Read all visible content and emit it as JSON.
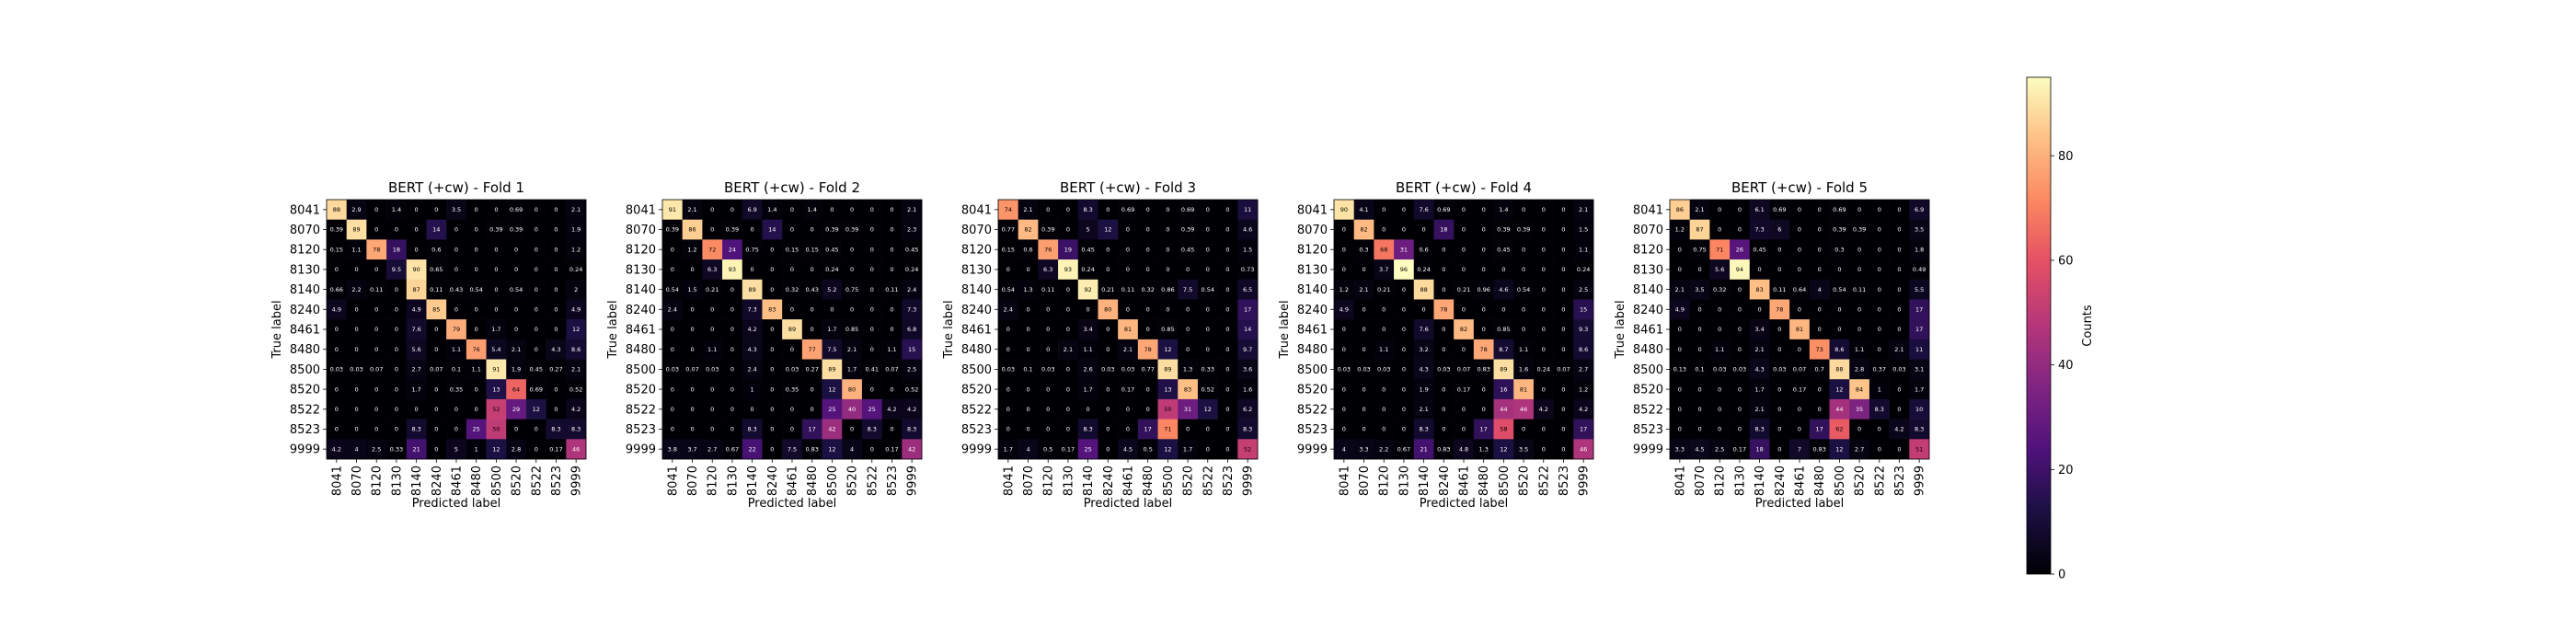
{
  "chart_data": {
    "type": "heatmap",
    "labels": [
      "8041",
      "8070",
      "8120",
      "8130",
      "8140",
      "8240",
      "8461",
      "8480",
      "8500",
      "8520",
      "8522",
      "8523",
      "9999"
    ],
    "xlabel": "Predicted label",
    "ylabel": "True label",
    "colorbar": {
      "label": "Counts",
      "range": [
        0,
        95
      ],
      "ticks": [
        0,
        20,
        40,
        60,
        80
      ],
      "colormap": "magma"
    },
    "panels": [
      {
        "title": "BERT (+cw) - Fold 1",
        "matrix": [
          [
            88,
            2.9,
            0,
            1.4,
            0,
            0,
            3.5,
            0,
            0,
            0.69,
            0,
            0,
            2.1
          ],
          [
            0.39,
            89,
            0,
            0,
            0,
            14,
            0,
            0,
            0.39,
            0.39,
            0,
            0,
            1.9
          ],
          [
            0.15,
            1.1,
            78,
            18,
            0,
            0.6,
            0,
            0,
            0,
            0,
            0,
            0,
            1.2
          ],
          [
            0,
            0,
            0,
            9.5,
            90,
            0.65,
            0,
            0,
            0,
            0,
            0,
            0,
            0.24
          ],
          [
            0.66,
            2.2,
            0.11,
            0,
            87,
            0.11,
            0.43,
            0.54,
            0,
            0.54,
            0,
            0,
            2
          ],
          [
            4.9,
            0,
            0,
            0,
            4.9,
            85,
            0,
            0,
            0,
            0,
            0,
            0,
            4.9
          ],
          [
            0,
            0,
            0,
            0,
            7.6,
            0,
            79,
            0,
            1.7,
            0,
            0,
            0,
            12
          ],
          [
            0,
            0,
            0,
            0,
            5.6,
            0,
            1.1,
            76,
            5.4,
            2.1,
            0,
            4.3,
            8.6
          ],
          [
            0.03,
            0.03,
            0.07,
            0,
            2.7,
            0.07,
            0.1,
            1.1,
            91,
            1.9,
            0.45,
            0.27,
            2.1
          ],
          [
            0,
            0,
            0,
            0,
            1.7,
            0,
            0.35,
            0,
            13,
            64,
            0.69,
            0,
            0.52
          ],
          [
            0,
            0,
            0,
            0,
            0,
            0,
            0,
            0,
            52,
            29,
            12,
            0,
            4.2
          ],
          [
            0,
            0,
            0,
            0,
            8.3,
            0,
            0,
            25,
            50,
            0,
            0,
            8.3,
            8.3
          ],
          [
            4.2,
            4,
            2.5,
            0.33,
            21,
            0,
            5,
            1,
            12,
            2.8,
            0,
            0.17,
            46
          ]
        ]
      },
      {
        "title": "BERT (+cw) - Fold 2",
        "matrix": [
          [
            91,
            2.1,
            0,
            0,
            6.9,
            1.4,
            0,
            1.4,
            0,
            0,
            0,
            0,
            2.1
          ],
          [
            0.39,
            86,
            0,
            0.39,
            0,
            14,
            0,
            0,
            0.39,
            0.39,
            0,
            0,
            2.3
          ],
          [
            0,
            1.2,
            72,
            24,
            0.75,
            0,
            0.15,
            0.15,
            0.45,
            0,
            0,
            0,
            0.45
          ],
          [
            0,
            0,
            6.3,
            93,
            0,
            0,
            0,
            0,
            0.24,
            0,
            0,
            0,
            0.24
          ],
          [
            0.54,
            1.5,
            0.21,
            0,
            89,
            0,
            0.32,
            0.43,
            5.2,
            0.75,
            0,
            0.11,
            2.4
          ],
          [
            2.4,
            0,
            0,
            0,
            7.3,
            83,
            0,
            0,
            0,
            0,
            0,
            0,
            7.3
          ],
          [
            0,
            0,
            0,
            0,
            4.2,
            0,
            89,
            0,
            1.7,
            0.85,
            0,
            0,
            6.8
          ],
          [
            0,
            0,
            1.1,
            0,
            4.3,
            0,
            0,
            77,
            7.5,
            2.1,
            0,
            1.1,
            15
          ],
          [
            0.03,
            0.07,
            0.03,
            0,
            2.4,
            0,
            0.03,
            0.27,
            89,
            1.7,
            0.41,
            0.07,
            2.5
          ],
          [
            0,
            0,
            0,
            0,
            1,
            0,
            0.35,
            0,
            12,
            80,
            0,
            0,
            0.52
          ],
          [
            0,
            0,
            0,
            0,
            0,
            0,
            0,
            0,
            25,
            40,
            25,
            4.2,
            4.2
          ],
          [
            0,
            0,
            0,
            0,
            8.3,
            0,
            0,
            17,
            42,
            0,
            8.3,
            0,
            8.3
          ],
          [
            3.8,
            3.7,
            2.7,
            0.67,
            22,
            0,
            7.5,
            0.83,
            12,
            4,
            0,
            0.17,
            42
          ]
        ]
      },
      {
        "title": "BERT (+cw) - Fold 3",
        "matrix": [
          [
            74,
            2.1,
            0,
            0,
            8.3,
            0,
            0.69,
            0,
            0,
            0.69,
            0,
            0,
            11
          ],
          [
            0.77,
            82,
            0.39,
            0,
            5,
            12,
            0,
            0,
            0,
            0.39,
            0,
            0,
            4.6
          ],
          [
            0.15,
            0.6,
            76,
            19,
            0.45,
            0,
            0,
            0,
            0,
            0.45,
            0,
            0,
            1.5
          ],
          [
            0,
            0,
            6.3,
            93,
            0.24,
            0,
            0,
            0,
            0,
            0,
            0,
            0,
            0.73
          ],
          [
            0.54,
            1.3,
            0.11,
            0,
            92,
            0.21,
            0.11,
            0.32,
            0.86,
            7.5,
            0.54,
            0,
            6.5
          ],
          [
            2.4,
            0,
            0,
            0,
            0,
            80,
            0,
            0,
            0,
            0,
            0,
            0,
            17
          ],
          [
            0,
            0,
            0,
            0,
            3.4,
            0,
            81,
            0,
            0.85,
            0,
            0,
            0,
            14
          ],
          [
            0,
            0,
            0,
            2.1,
            1.1,
            0,
            2.1,
            78,
            12,
            0,
            0,
            0,
            9.7
          ],
          [
            0.03,
            0.1,
            0.03,
            0,
            2.6,
            0.03,
            0.03,
            0.77,
            89,
            1.3,
            0.33,
            0,
            3.6
          ],
          [
            0,
            0,
            0,
            0,
            1.7,
            0,
            0.17,
            0,
            13,
            83,
            0.52,
            0,
            1.6
          ],
          [
            0,
            0,
            0,
            0,
            0,
            0,
            0,
            0,
            50,
            31,
            12,
            0,
            6.2
          ],
          [
            0,
            0,
            0,
            0,
            8.3,
            0,
            0,
            17,
            71,
            0,
            0,
            0,
            8.3
          ],
          [
            1.7,
            4,
            0.5,
            0.17,
            25,
            0,
            4.5,
            0.5,
            12,
            1.7,
            0,
            0,
            52
          ]
        ]
      },
      {
        "title": "BERT (+cw) - Fold 4",
        "matrix": [
          [
            90,
            4.1,
            0,
            0,
            7.6,
            0.69,
            0,
            0,
            1.4,
            0,
            0,
            0,
            2.1
          ],
          [
            0,
            82,
            0,
            0,
            0,
            18,
            0,
            0,
            0.39,
            0.39,
            0,
            0,
            1.5
          ],
          [
            0,
            0.3,
            68,
            31,
            0.6,
            0,
            0,
            0,
            0.45,
            0,
            0,
            0,
            1.1
          ],
          [
            0,
            0,
            3.7,
            96,
            0.24,
            0,
            0,
            0,
            0,
            0,
            0,
            0,
            0.24
          ],
          [
            1.2,
            2.1,
            0.21,
            0,
            88,
            0,
            0.21,
            0.96,
            4.6,
            0.54,
            0,
            0,
            2.5
          ],
          [
            4.9,
            0,
            0,
            0,
            0,
            78,
            0,
            0,
            0,
            0,
            0,
            0,
            15
          ],
          [
            0,
            0,
            0,
            0,
            7.6,
            0,
            82,
            0,
            0.85,
            0,
            0,
            0,
            9.3
          ],
          [
            0,
            0,
            1.1,
            0,
            3.2,
            0,
            0,
            78,
            8.7,
            1.1,
            0,
            0,
            8.6
          ],
          [
            0.03,
            0.03,
            0.03,
            0,
            4.3,
            0.03,
            0.07,
            0.83,
            89,
            1.6,
            0.24,
            0.07,
            2.7
          ],
          [
            0,
            0,
            0,
            0,
            1.9,
            0,
            0.17,
            0,
            16,
            81,
            0,
            0,
            1.2
          ],
          [
            0,
            0,
            0,
            0,
            2.1,
            0,
            0,
            0,
            44,
            46,
            4.2,
            0,
            4.2
          ],
          [
            0,
            0,
            0,
            0,
            8.3,
            0,
            0,
            17,
            58,
            0,
            0,
            0,
            17
          ],
          [
            4,
            3.3,
            2.2,
            0.67,
            21,
            0.83,
            4.8,
            1.3,
            12,
            3.5,
            0,
            0,
            46
          ]
        ]
      },
      {
        "title": "BERT (+cw) - Fold 5",
        "matrix": [
          [
            86,
            2.1,
            0,
            0,
            6.1,
            0.69,
            0,
            0,
            0.69,
            0,
            0,
            0,
            6.9
          ],
          [
            1.2,
            87,
            0,
            0,
            7.3,
            6,
            0,
            0,
            0.39,
            0.39,
            0,
            0,
            3.5
          ],
          [
            0,
            0.75,
            71,
            26,
            0.45,
            0,
            0,
            0,
            0.3,
            0,
            0,
            0,
            1.8
          ],
          [
            0,
            0,
            5.6,
            94,
            0,
            0,
            0,
            0,
            0,
            0,
            0,
            0,
            0.49
          ],
          [
            2.1,
            3.5,
            0.32,
            0,
            83,
            0.11,
            0.64,
            4,
            0.54,
            0.11,
            0,
            0,
            5.5
          ],
          [
            4.9,
            0,
            0,
            0,
            0,
            78,
            0,
            0,
            0,
            0,
            0,
            0,
            17
          ],
          [
            0,
            0,
            0,
            0,
            3.4,
            0,
            81,
            0,
            0,
            0,
            0,
            0,
            17
          ],
          [
            0,
            0,
            1.1,
            0,
            2.1,
            0,
            0,
            73,
            8.6,
            1.1,
            0,
            2.1,
            11
          ],
          [
            0.13,
            0.1,
            0.03,
            0.03,
            4.3,
            0.03,
            0.07,
            0.7,
            88,
            2.8,
            0.37,
            0.03,
            3.1
          ],
          [
            0,
            0,
            0,
            0,
            1.7,
            0,
            0.17,
            0,
            12,
            84,
            1,
            0,
            1.7
          ],
          [
            0,
            0,
            0,
            0,
            2.1,
            0,
            0,
            0,
            44,
            35,
            8.3,
            0,
            10
          ],
          [
            0,
            0,
            0,
            0,
            8.3,
            0,
            0,
            17,
            62,
            0,
            0,
            4.2,
            8.3
          ],
          [
            3.3,
            4.5,
            2.5,
            0.17,
            18,
            0,
            7,
            0.83,
            12,
            2.7,
            0,
            0,
            51
          ]
        ]
      }
    ]
  }
}
